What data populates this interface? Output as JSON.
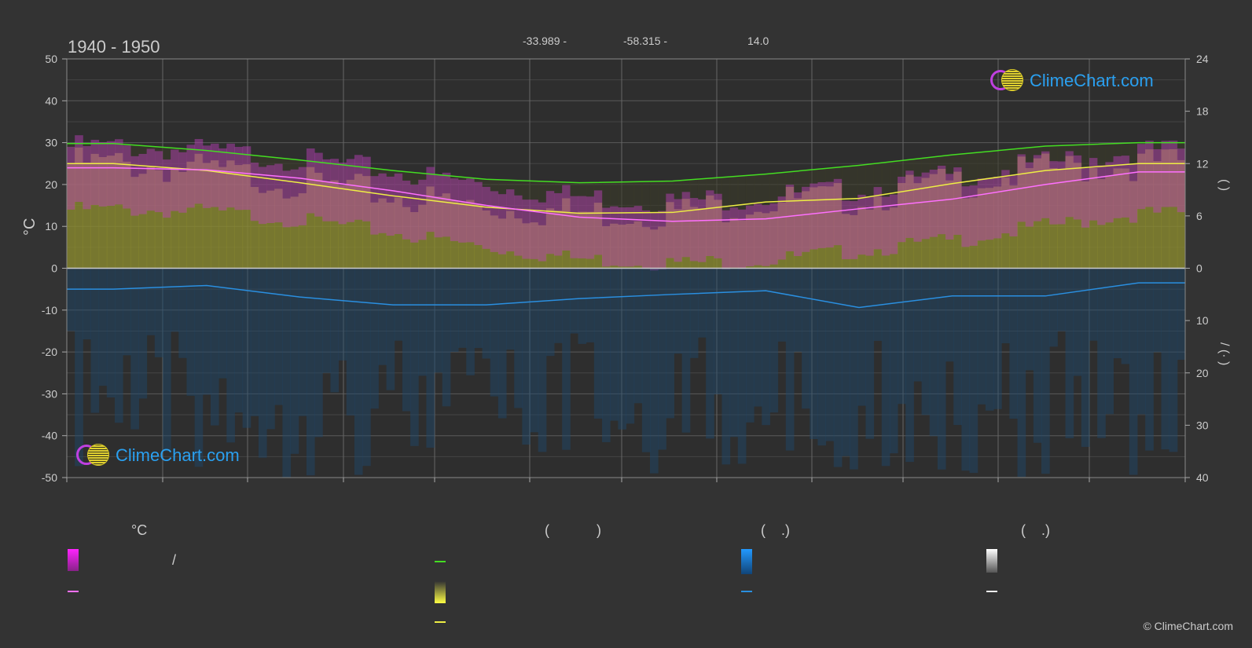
{
  "header": {
    "period": "1940 - 1950",
    "lat": "-33.989 -",
    "lon": "-58.315 -",
    "elevation": "14.0"
  },
  "axes": {
    "left_label": "°C",
    "left_ticks": [
      "50",
      "40",
      "30",
      "20",
      "10",
      "0",
      "-10",
      "-20",
      "-30",
      "-40",
      "-50"
    ],
    "right_top_ticks": [
      "24",
      "18",
      "12",
      "6",
      "0"
    ],
    "right_bottom_ticks": [
      "0",
      "10",
      "20",
      "30",
      "40"
    ],
    "right_top_label": "(      )",
    "right_bottom_label": "/     (·   )"
  },
  "legend": {
    "col1_header": "°C",
    "col2_header": "(            )",
    "col3_header": "(    .)",
    "col4_header": "(    .)",
    "item_slash": "/",
    "colors": {
      "magenta": "#ff33ff",
      "pink_line": "#ff70ff",
      "green": "#44dd22",
      "yellow": "#eeee44",
      "blue": "#2a8fe0",
      "white": "#eeeeee"
    }
  },
  "logo": {
    "text": "ClimeChart.com"
  },
  "copyright": "© ClimeChart.com",
  "chart_data": {
    "type": "area",
    "x_period": "1940 - 1950",
    "ylim_left": [
      -50,
      50
    ],
    "ylim_right_top": [
      0,
      24
    ],
    "ylim_right_bottom": [
      0,
      40
    ],
    "grid": true,
    "months": 12,
    "series": [
      {
        "key": "daylight_hours",
        "color": "#44dd22",
        "values": [
          14.3,
          13.5,
          12.4,
          11.2,
          10.2,
          9.8,
          10.0,
          10.8,
          11.8,
          13.0,
          14.0,
          14.4
        ]
      },
      {
        "key": "sunshine_hours",
        "color": "#eeee44",
        "values": [
          12.0,
          11.2,
          9.8,
          8.3,
          7.0,
          6.3,
          6.4,
          7.6,
          8.0,
          9.7,
          11.2,
          12.0
        ]
      },
      {
        "key": "mean_temperature",
        "color": "#ff70ff",
        "values": [
          24.0,
          23.5,
          21.5,
          18.5,
          15.0,
          12.2,
          11.2,
          11.8,
          14.2,
          16.5,
          20.0,
          23.0
        ]
      },
      {
        "key": "max_temperature_band_top",
        "color": "#ff33ff",
        "values": [
          29,
          28,
          26,
          23,
          20,
          17,
          16,
          17,
          19,
          22,
          25,
          28
        ]
      },
      {
        "key": "precipitation_mm",
        "color": "#2a8fe0",
        "values": [
          4.0,
          3.3,
          5.5,
          7.0,
          7.0,
          5.8,
          5.0,
          4.3,
          7.5,
          5.3,
          5.3,
          2.8
        ]
      }
    ]
  }
}
